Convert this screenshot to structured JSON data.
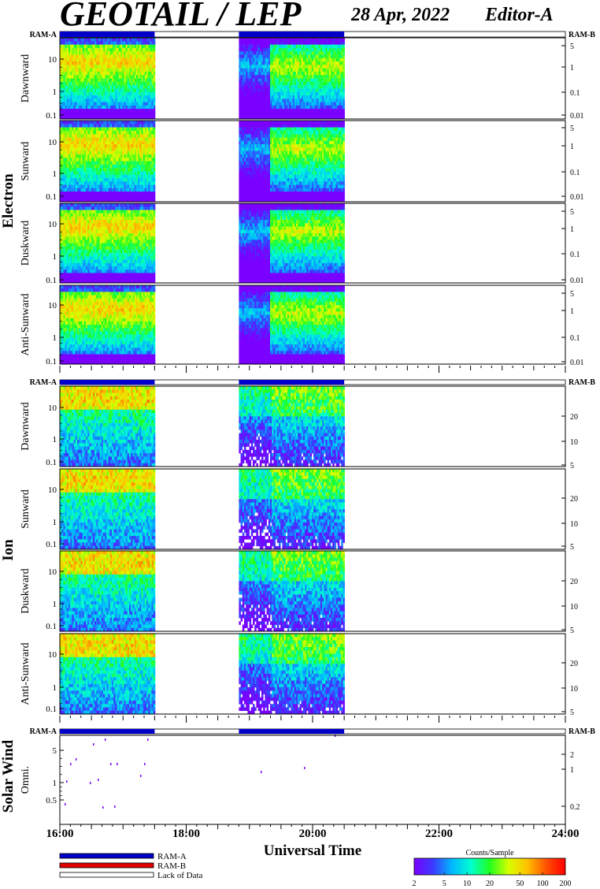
{
  "header": {
    "title": "GEOTAIL / LEP",
    "date": "28 Apr, 2022",
    "editor": "Editor-A"
  },
  "colors": {
    "ram_a": "#0000c8",
    "ram_b": "#e00000",
    "lack_of_data": "#ffffff",
    "colorbar": [
      "#7a00ff",
      "#3a3aff",
      "#00b8ff",
      "#00ffd0",
      "#20ff20",
      "#d8ff00",
      "#ffc000",
      "#ff5000",
      "#ff0000"
    ]
  },
  "chart_data": {
    "type": "heatmap",
    "xlabel": "Universal Time",
    "x_ticks": [
      "16:00",
      "18:00",
      "20:00",
      "22:00",
      "24:00"
    ],
    "x_range": [
      "16:00",
      "24:00"
    ],
    "data_coverage": [
      [
        "16:00",
        "17:30"
      ],
      [
        "18:50",
        "20:30"
      ]
    ],
    "ram_status": [
      {
        "status": "RAM-A",
        "start": "16:00",
        "end": "17:30"
      },
      {
        "status": "Lack of Data",
        "start": "17:30",
        "end": "18:50"
      },
      {
        "status": "RAM-A",
        "start": "18:50",
        "end": "20:30"
      },
      {
        "status": "Lack of Data",
        "start": "20:30",
        "end": "24:00"
      }
    ],
    "groups": [
      {
        "name": "Electron",
        "left_ticks": [
          "10",
          "1",
          "0.1"
        ],
        "right_ticks": [
          "5",
          "1",
          "0.1",
          "0.01"
        ],
        "panels": [
          {
            "name": "Dawnward",
            "ram_left": "RAM-A",
            "ram_right": "RAM-B"
          },
          {
            "name": "Sunward"
          },
          {
            "name": "Duskward"
          },
          {
            "name": "Anti-Sunward"
          }
        ]
      },
      {
        "name": "Ion",
        "left_ticks": [
          "10",
          "1",
          "0.1"
        ],
        "right_ticks": [
          "20",
          "10",
          "5"
        ],
        "panels": [
          {
            "name": "Dawnward",
            "ram_left": "RAM-A",
            "ram_right": "RAM-B"
          },
          {
            "name": "Sunward"
          },
          {
            "name": "Duskward"
          },
          {
            "name": "Anti-Sunward"
          }
        ]
      },
      {
        "name": "Solar Wind",
        "left_ticks": [
          "5",
          "1",
          "0.5"
        ],
        "right_ticks": [
          "2",
          "1",
          "0.2"
        ],
        "panels": [
          {
            "name": "Omni.",
            "ram_left": "RAM-A",
            "ram_right": "RAM-B"
          }
        ]
      }
    ],
    "legend": [
      "RAM-A",
      "RAM-B",
      "Lack of Data"
    ],
    "colorbar": {
      "label": "Counts/Sample",
      "ticks": [
        "2",
        "5",
        "10",
        "20",
        "50",
        "100",
        "200"
      ],
      "range": [
        2,
        200
      ],
      "scale": "log"
    }
  }
}
